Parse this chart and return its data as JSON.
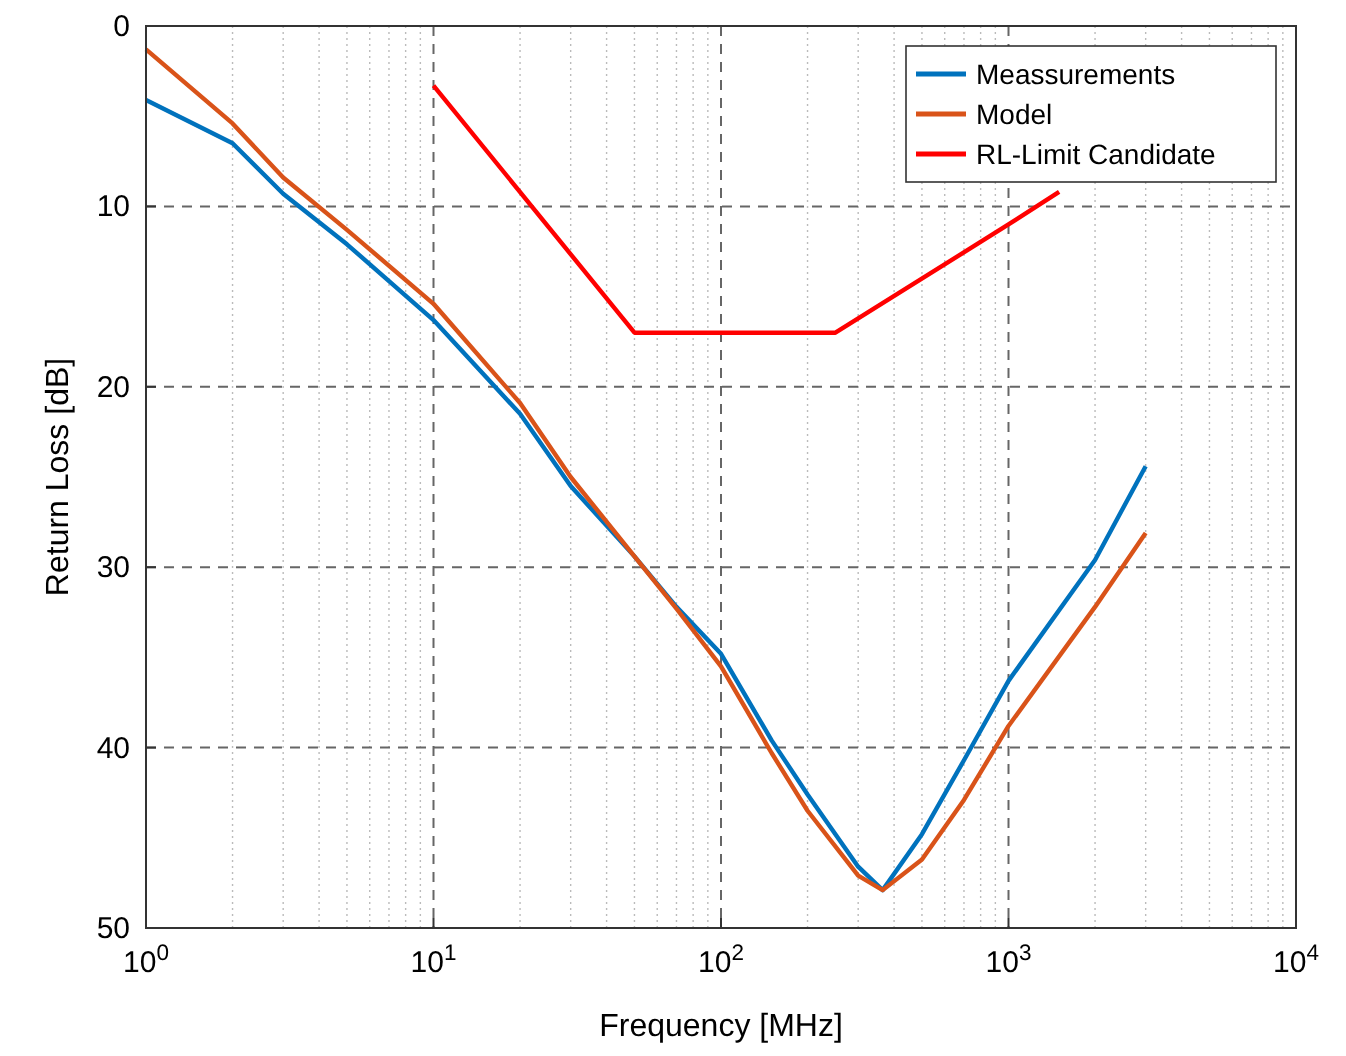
{
  "chart_data": {
    "type": "line",
    "xlabel": "Frequency [MHz]",
    "ylabel": "Return Loss [dB]",
    "log": "x",
    "grid": true,
    "legend": "top right",
    "line_style": "solid",
    "marker": "none",
    "xlim": [
      1,
      10000
    ],
    "xticks": [
      {
        "value": 1,
        "label": "10$^{0}$"
      },
      {
        "value": 10,
        "label": "10$^{1}$"
      },
      {
        "value": 100,
        "label": "10$^{2}$"
      },
      {
        "value": 1000,
        "label": "10$^{3}$"
      },
      {
        "value": 10000,
        "label": "10$^{4}$"
      }
    ],
    "ylim": [
      50,
      0
    ],
    "yticks": [
      0,
      10,
      20,
      30,
      40,
      50
    ],
    "series": [
      {
        "name": "Meassurements",
        "color": "#0072bd",
        "x": [
          1,
          2,
          3,
          5,
          10,
          20,
          30,
          50,
          70,
          100,
          150,
          200,
          300,
          365,
          500,
          700,
          1000,
          2000,
          3000
        ],
        "values": [
          4.1,
          6.5,
          9.3,
          12.1,
          16.3,
          21.5,
          25.5,
          29.4,
          32.2,
          34.8,
          39.6,
          42.6,
          46.6,
          47.9,
          44.8,
          40.7,
          36.3,
          29.6,
          24.4
        ]
      },
      {
        "name": "Model",
        "color": "#d95319",
        "x": [
          1,
          2,
          3,
          5,
          10,
          20,
          30,
          50,
          70,
          100,
          150,
          200,
          300,
          365,
          500,
          700,
          1000,
          2000,
          3000
        ],
        "values": [
          1.3,
          5.4,
          8.4,
          11.3,
          15.4,
          20.9,
          25.0,
          29.4,
          32.3,
          35.5,
          40.3,
          43.5,
          47.1,
          47.9,
          46.2,
          42.9,
          38.8,
          32.2,
          28.1
        ]
      },
      {
        "name": "RL-Limit Candidate",
        "color": "#ff0000",
        "x": [
          10,
          50,
          250,
          1000,
          1500
        ],
        "values": [
          3.3,
          17,
          17,
          11,
          9.2
        ]
      }
    ]
  }
}
